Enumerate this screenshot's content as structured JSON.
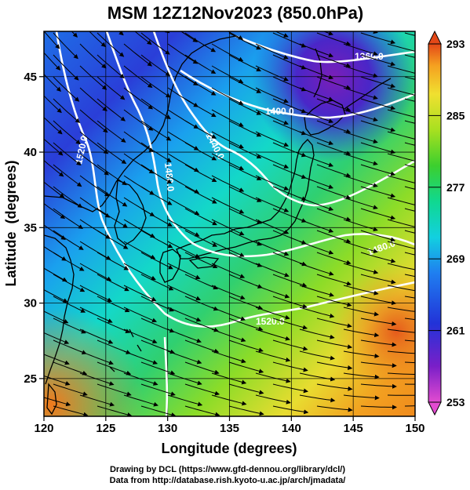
{
  "title": "MSM 12Z12Nov2023 (850.0hPa)",
  "xaxis": {
    "label": "Longitude (degrees)",
    "min": 120,
    "max": 150,
    "ticks": [
      "120",
      "125",
      "130",
      "135",
      "140",
      "145",
      "150"
    ]
  },
  "yaxis": {
    "label": "Latitude  (degrees)",
    "min": 22.5,
    "max": 48,
    "ticks": [
      "25",
      "30",
      "35",
      "40",
      "45"
    ]
  },
  "colorbar": {
    "min": 253,
    "max": 293,
    "ticks": [
      "253",
      "261",
      "269",
      "277",
      "285",
      "293"
    ],
    "colors": [
      "#e24bd0",
      "#7a1fc8",
      "#2233d8",
      "#1f7ef0",
      "#12d0e0",
      "#10d890",
      "#3ccf2e",
      "#a8e020",
      "#f0e030",
      "#f5a020",
      "#e44818"
    ]
  },
  "contour_labels": [
    "1360.0",
    "1400.0",
    "1440.0",
    "1480.0",
    "1520.0",
    "1480.0",
    "1520.0"
  ],
  "credits": {
    "line1": "Drawing by DCL (https://www.gfd-dennou.org/library/dcl/)",
    "line2": "Data from http://database.rish.kyoto-u.ac.jp/arch/jmadata/"
  },
  "colors": {
    "contour": "#ffffff",
    "streamline": "#000000",
    "coast": "#000000"
  }
}
